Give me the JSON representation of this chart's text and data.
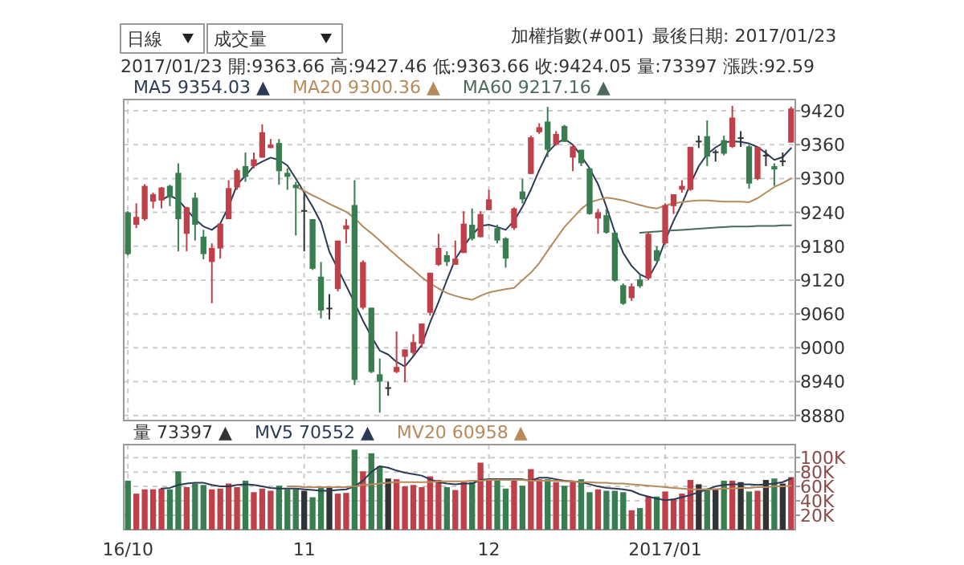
{
  "chart_data": [
    {
      "type": "candlestick",
      "title": "加權指數(#001)",
      "subtitle": "最後日期: 2017/01/23",
      "annotations": [
        "日線",
        "成交量",
        "2017/01/23 開:9363.66 高:9427.46 低:9363.66 收:9424.05 量:73397 漲跌:92.59"
      ],
      "categories": [
        "16/10",
        null,
        null,
        null,
        null,
        null,
        null,
        null,
        null,
        null,
        null,
        null,
        null,
        null,
        null,
        null,
        null,
        null,
        null,
        null,
        null,
        "11",
        null,
        null,
        null,
        null,
        null,
        null,
        null,
        null,
        null,
        null,
        null,
        null,
        null,
        null,
        null,
        null,
        null,
        null,
        null,
        null,
        null,
        "12",
        null,
        null,
        null,
        null,
        null,
        null,
        null,
        null,
        null,
        null,
        null,
        null,
        null,
        null,
        null,
        null,
        null,
        null,
        null,
        null,
        "2017/01",
        null,
        null,
        null,
        null,
        null,
        null,
        null,
        null,
        null,
        null,
        null,
        null,
        null,
        null,
        null
      ],
      "ohlc": [
        [
          9240,
          9242,
          9164,
          9166
        ],
        [
          9218,
          9256,
          9212,
          9232
        ],
        [
          9228,
          9290,
          9225,
          9287
        ],
        [
          9259,
          9275,
          9247,
          9272
        ],
        [
          9261,
          9285,
          9247,
          9284
        ],
        [
          9287,
          9289,
          9251,
          9266
        ],
        [
          9310,
          9327,
          9171,
          9228
        ],
        [
          9202,
          9250,
          9171,
          9249
        ],
        [
          9266,
          9275,
          9190,
          9218
        ],
        [
          9197,
          9209,
          9157,
          9166
        ],
        [
          9152,
          9185,
          9079,
          9177
        ],
        [
          9176,
          9220,
          9158,
          9220
        ],
        [
          9228,
          9297,
          9228,
          9283
        ],
        [
          9284,
          9318,
          9280,
          9315
        ],
        [
          9322,
          9346,
          9294,
          9303
        ],
        [
          9322,
          9346,
          9318,
          9334
        ],
        [
          9337,
          9396,
          9337,
          9382
        ],
        [
          9354,
          9370,
          9354,
          9360
        ],
        [
          9363,
          9370,
          9289,
          9313
        ],
        [
          9310,
          9318,
          9280,
          9303
        ],
        [
          9289,
          9294,
          9199,
          9283
        ],
        [
          9244,
          9275,
          9171,
          9242
        ],
        [
          9228,
          9228,
          9138,
          9140
        ],
        [
          9126,
          9152,
          9052,
          9066
        ],
        [
          9071,
          9095,
          9050,
          9069
        ],
        [
          9104,
          9190,
          9100,
          9190
        ],
        [
          9210,
          9228,
          9185,
          9217
        ],
        [
          9253,
          9297,
          8934,
          8943
        ],
        [
          9071,
          9155,
          9068,
          9152
        ],
        [
          9071,
          9071,
          8955,
          8957
        ],
        [
          8953,
          8981,
          8885,
          8940
        ],
        [
          8930,
          8940,
          8915,
          8928
        ],
        [
          8957,
          9029,
          8955,
          8966
        ],
        [
          8984,
          8997,
          8939,
          8997
        ],
        [
          8991,
          9024,
          8986,
          9010
        ],
        [
          9007,
          9043,
          9000,
          9043
        ],
        [
          9062,
          9133,
          9057,
          9133
        ],
        [
          9147,
          9202,
          9145,
          9177
        ],
        [
          9164,
          9171,
          9145,
          9152
        ],
        [
          9147,
          9190,
          9147,
          9158
        ],
        [
          9168,
          9242,
          9168,
          9220
        ],
        [
          9218,
          9247,
          9190,
          9193
        ],
        [
          9196,
          9242,
          9196,
          9237
        ],
        [
          9244,
          9280,
          9244,
          9263
        ],
        [
          9212,
          9218,
          9185,
          9190
        ],
        [
          9194,
          9196,
          9142,
          9158
        ],
        [
          9212,
          9249,
          9209,
          9247
        ],
        [
          9277,
          9299,
          9256,
          9263
        ],
        [
          9308,
          9376,
          9308,
          9373
        ],
        [
          9382,
          9398,
          9379,
          9391
        ],
        [
          9401,
          9427,
          9338,
          9351
        ],
        [
          9360,
          9384,
          9358,
          9379
        ],
        [
          9393,
          9395,
          9365,
          9365
        ],
        [
          9337,
          9360,
          9313,
          9357
        ],
        [
          9351,
          9351,
          9322,
          9327
        ],
        [
          9318,
          9318,
          9236,
          9237
        ],
        [
          9229,
          9246,
          9202,
          9240
        ],
        [
          9235,
          9246,
          9202,
          9204
        ],
        [
          9204,
          9204,
          9117,
          9119
        ],
        [
          9111,
          9114,
          9076,
          9078
        ],
        [
          9088,
          9114,
          9083,
          9109
        ],
        [
          9121,
          9130,
          9106,
          9109
        ],
        [
          9123,
          9204,
          9120,
          9202
        ],
        [
          9173,
          9180,
          9152,
          9154
        ],
        [
          9185,
          9256,
          9183,
          9253
        ],
        [
          9251,
          9272,
          9237,
          9272
        ],
        [
          9280,
          9297,
          9275,
          9287
        ],
        [
          9280,
          9356,
          9278,
          9356
        ],
        [
          9367,
          9376,
          9354,
          9365
        ],
        [
          9375,
          9403,
          9322,
          9339
        ],
        [
          9348,
          9351,
          9330,
          9346
        ],
        [
          9368,
          9376,
          9341,
          9344
        ],
        [
          9356,
          9429,
          9354,
          9408
        ],
        [
          9373,
          9384,
          9356,
          9372
        ],
        [
          9357,
          9360,
          9282,
          9291
        ],
        [
          9299,
          9356,
          9297,
          9356
        ],
        [
          9342,
          9351,
          9322,
          9341
        ],
        [
          9322,
          9327,
          9287,
          9316
        ],
        [
          9332,
          9346,
          9322,
          9330
        ],
        [
          9363.66,
          9427.46,
          9363.66,
          9424.05
        ]
      ],
      "colors": [
        "#3a7d50",
        "#c0404a",
        "#c0404a",
        "#c0404a",
        "#c0404a",
        "#3a7d50",
        "#3a7d50",
        "#c0404a",
        "#3a7d50",
        "#3a7d50",
        "#c0404a",
        "#c0404a",
        "#c0404a",
        "#c0404a",
        "#3a7d50",
        "#c0404a",
        "#c0404a",
        "#c0404a",
        "#3a7d50",
        "#3a7d50",
        "#3a7d50",
        "#333333",
        "#3a7d50",
        "#3a7d50",
        "#333333",
        "#c0404a",
        "#c0404a",
        "#3a7d50",
        "#c0404a",
        "#3a7d50",
        "#3a7d50",
        "#333333",
        "#c0404a",
        "#c0404a",
        "#c0404a",
        "#c0404a",
        "#c0404a",
        "#c0404a",
        "#3a7d50",
        "#c0404a",
        "#c0404a",
        "#3a7d50",
        "#c0404a",
        "#c0404a",
        "#3a7d50",
        "#3a7d50",
        "#c0404a",
        "#3a7d50",
        "#c0404a",
        "#c0404a",
        "#3a7d50",
        "#c0404a",
        "#3a7d50",
        "#c0404a",
        "#3a7d50",
        "#3a7d50",
        "#c0404a",
        "#3a7d50",
        "#3a7d50",
        "#3a7d50",
        "#c0404a",
        "#3a7d50",
        "#c0404a",
        "#3a7d50",
        "#c0404a",
        "#c0404a",
        "#c0404a",
        "#c0404a",
        "#333333",
        "#3a7d50",
        "#333333",
        "#3a7d50",
        "#c0404a",
        "#333333",
        "#3a7d50",
        "#c0404a",
        "#333333",
        "#3a7d50",
        "#333333",
        "#c0404a"
      ],
      "series": [
        {
          "type": "line",
          "name": "MA5 9354.03 ▲",
          "color": "#2b3a55",
          "values": [
            null,
            null,
            null,
            null,
            9262,
            9270,
            9262,
            9245,
            9228,
            9215,
            9209,
            9220,
            9250,
            9289,
            9305,
            9322,
            9330,
            9337,
            9333,
            9323,
            9300,
            9275,
            9250,
            9222,
            9170,
            9140,
            9110,
            9080,
            9048,
            9020,
            8995,
            8988,
            8975,
            8967,
            8985,
            9005,
            9045,
            9081,
            9120,
            9157,
            9180,
            9200,
            9216,
            9218,
            9214,
            9209,
            9225,
            9250,
            9280,
            9315,
            9346,
            9362,
            9370,
            9360,
            9340,
            9318,
            9290,
            9250,
            9205,
            9168,
            9145,
            9130,
            9123,
            9150,
            9190,
            9225,
            9255,
            9290,
            9322,
            9343,
            9355,
            9364,
            9366,
            9365,
            9362,
            9356,
            9345,
            9333,
            9338,
            9354
          ]
        },
        {
          "type": "line",
          "name": "MA20 9300.36 ▲",
          "color": "#b8895a",
          "values": [
            null,
            null,
            null,
            null,
            null,
            null,
            null,
            null,
            null,
            null,
            null,
            null,
            null,
            null,
            null,
            null,
            null,
            null,
            null,
            null,
            9285,
            9278,
            9270,
            9263,
            9255,
            9248,
            9241,
            9230,
            9215,
            9203,
            9190,
            9176,
            9163,
            9150,
            9138,
            9125,
            9114,
            9105,
            9097,
            9092,
            9088,
            9085,
            9092,
            9098,
            9101,
            9104,
            9106,
            9120,
            9133,
            9150,
            9172,
            9193,
            9214,
            9230,
            9246,
            9258,
            9262,
            9266,
            9264,
            9261,
            9257,
            9253,
            9249,
            9247,
            9252,
            9256,
            9258,
            9260,
            9261,
            9261,
            9260,
            9259,
            9259,
            9259,
            9258,
            9265,
            9275,
            9285,
            9292,
            9300
          ]
        },
        {
          "type": "line",
          "name": "MA60 9217.16 ▲",
          "color": "#4a6a5a",
          "values": [
            null,
            null,
            null,
            null,
            null,
            null,
            null,
            null,
            null,
            null,
            null,
            null,
            null,
            null,
            null,
            null,
            null,
            null,
            null,
            null,
            null,
            null,
            null,
            null,
            null,
            null,
            null,
            null,
            null,
            null,
            null,
            null,
            null,
            null,
            null,
            null,
            null,
            null,
            null,
            null,
            null,
            null,
            null,
            null,
            null,
            null,
            null,
            null,
            null,
            null,
            null,
            null,
            null,
            null,
            null,
            null,
            null,
            null,
            null,
            null,
            null,
            9204,
            9205,
            9206,
            9207,
            9208,
            9209,
            9210,
            9211,
            9212,
            9213,
            9214,
            9215,
            9215,
            9215,
            9216,
            9216,
            9216,
            9217,
            9217
          ]
        }
      ],
      "ylim": [
        8871,
        9440
      ],
      "yticks": [
        8880,
        8940,
        9000,
        9060,
        9120,
        9180,
        9240,
        9300,
        9360,
        9420
      ],
      "grid": true,
      "legend": "top left"
    },
    {
      "type": "bar",
      "legend_title": "量 73397 ▲",
      "tick_labels": "y",
      "categories": [
        null,
        null,
        null,
        null,
        null,
        null,
        null,
        null,
        null,
        null,
        null,
        null,
        null,
        null,
        null,
        null,
        null,
        null,
        null,
        null,
        null,
        null,
        null,
        null,
        null,
        null,
        null,
        null,
        null,
        null,
        null,
        null,
        null,
        null,
        null,
        null,
        null,
        null,
        null,
        null,
        null,
        null,
        null,
        null,
        null,
        null,
        null,
        null,
        null,
        null,
        null,
        null,
        null,
        null,
        null,
        null,
        null,
        null,
        null,
        null,
        null,
        null,
        null,
        null,
        null,
        null,
        null,
        null,
        null,
        null,
        null,
        null,
        null,
        null,
        null,
        null,
        null,
        null,
        null,
        null
      ],
      "values": [
        68,
        50,
        56,
        56,
        57,
        56,
        81,
        59,
        64,
        62,
        56,
        57,
        64,
        59,
        68,
        52,
        57,
        54,
        61,
        56,
        56,
        54,
        45,
        59,
        60,
        50,
        51,
        111,
        81,
        106,
        88,
        71,
        70,
        60,
        62,
        59,
        74,
        69,
        59,
        55,
        66,
        66,
        93,
        68,
        69,
        57,
        68,
        61,
        84,
        70,
        70,
        66,
        61,
        66,
        70,
        52,
        56,
        54,
        54,
        52,
        27,
        30,
        46,
        46,
        53,
        43,
        50,
        69,
        63,
        57,
        57,
        68,
        68,
        66,
        53,
        54,
        69,
        71,
        64,
        73
      ],
      "colors": [
        "#3a7d50",
        "#c0404a",
        "#c0404a",
        "#c0404a",
        "#c0404a",
        "#3a7d50",
        "#3a7d50",
        "#c0404a",
        "#3a7d50",
        "#3a7d50",
        "#c0404a",
        "#c0404a",
        "#c0404a",
        "#c0404a",
        "#3a7d50",
        "#c0404a",
        "#c0404a",
        "#c0404a",
        "#3a7d50",
        "#3a7d50",
        "#3a7d50",
        "#333333",
        "#3a7d50",
        "#3a7d50",
        "#333333",
        "#c0404a",
        "#c0404a",
        "#3a7d50",
        "#c0404a",
        "#3a7d50",
        "#3a7d50",
        "#333333",
        "#c0404a",
        "#c0404a",
        "#c0404a",
        "#c0404a",
        "#c0404a",
        "#c0404a",
        "#3a7d50",
        "#c0404a",
        "#c0404a",
        "#3a7d50",
        "#c0404a",
        "#c0404a",
        "#3a7d50",
        "#3a7d50",
        "#c0404a",
        "#3a7d50",
        "#c0404a",
        "#c0404a",
        "#3a7d50",
        "#c0404a",
        "#3a7d50",
        "#c0404a",
        "#3a7d50",
        "#3a7d50",
        "#c0404a",
        "#3a7d50",
        "#3a7d50",
        "#3a7d50",
        "#c0404a",
        "#3a7d50",
        "#c0404a",
        "#3a7d50",
        "#c0404a",
        "#c0404a",
        "#c0404a",
        "#c0404a",
        "#333333",
        "#3a7d50",
        "#333333",
        "#3a7d50",
        "#c0404a",
        "#333333",
        "#3a7d50",
        "#c0404a",
        "#333333",
        "#3a7d50",
        "#333333",
        "#c0404a"
      ],
      "series": [
        {
          "type": "line",
          "name": "MV5 70552 ▲",
          "color": "#2b3a55",
          "values": [
            null,
            null,
            null,
            null,
            57,
            58,
            62,
            64,
            65,
            65,
            62,
            60,
            60,
            62,
            63,
            62,
            60,
            58,
            57,
            57,
            57,
            56,
            55,
            54,
            54,
            55,
            56,
            60,
            68,
            80,
            88,
            86,
            82,
            79,
            77,
            75,
            70,
            66,
            64,
            63,
            64,
            64,
            69,
            70,
            70,
            70,
            70,
            70,
            68,
            72,
            72,
            70,
            68,
            67,
            66,
            63,
            60,
            58,
            57,
            56,
            54,
            49,
            46,
            43,
            41,
            42,
            45,
            48,
            52,
            56,
            60,
            62,
            63,
            63,
            63,
            62,
            63,
            64,
            66,
            71
          ]
        },
        {
          "type": "line",
          "name": "MV20 60958 ▲",
          "color": "#b8895a",
          "values": [
            null,
            null,
            null,
            null,
            null,
            null,
            null,
            null,
            null,
            null,
            null,
            null,
            null,
            null,
            null,
            null,
            null,
            null,
            null,
            60,
            60,
            59,
            59,
            59,
            59,
            59,
            59,
            60,
            62,
            63,
            64,
            65,
            66,
            66,
            66,
            66,
            66,
            67,
            67,
            67,
            67,
            68,
            68,
            69,
            69,
            69,
            69,
            69,
            68,
            68,
            68,
            68,
            67,
            67,
            66,
            66,
            65,
            65,
            64,
            64,
            63,
            62,
            61,
            60,
            59,
            58,
            57,
            56,
            56,
            56,
            56,
            57,
            57,
            58,
            58,
            59,
            59,
            60,
            60,
            61
          ]
        }
      ],
      "ylim": [
        0,
        118
      ],
      "yticks": [
        {
          "value": 20,
          "label": "20K"
        },
        {
          "value": 40,
          "label": "40K"
        },
        {
          "value": 60,
          "label": "60K"
        },
        {
          "value": 80,
          "label": "80K"
        },
        {
          "value": 100,
          "label": "100K"
        }
      ],
      "grid": true,
      "legend": "top left"
    }
  ]
}
